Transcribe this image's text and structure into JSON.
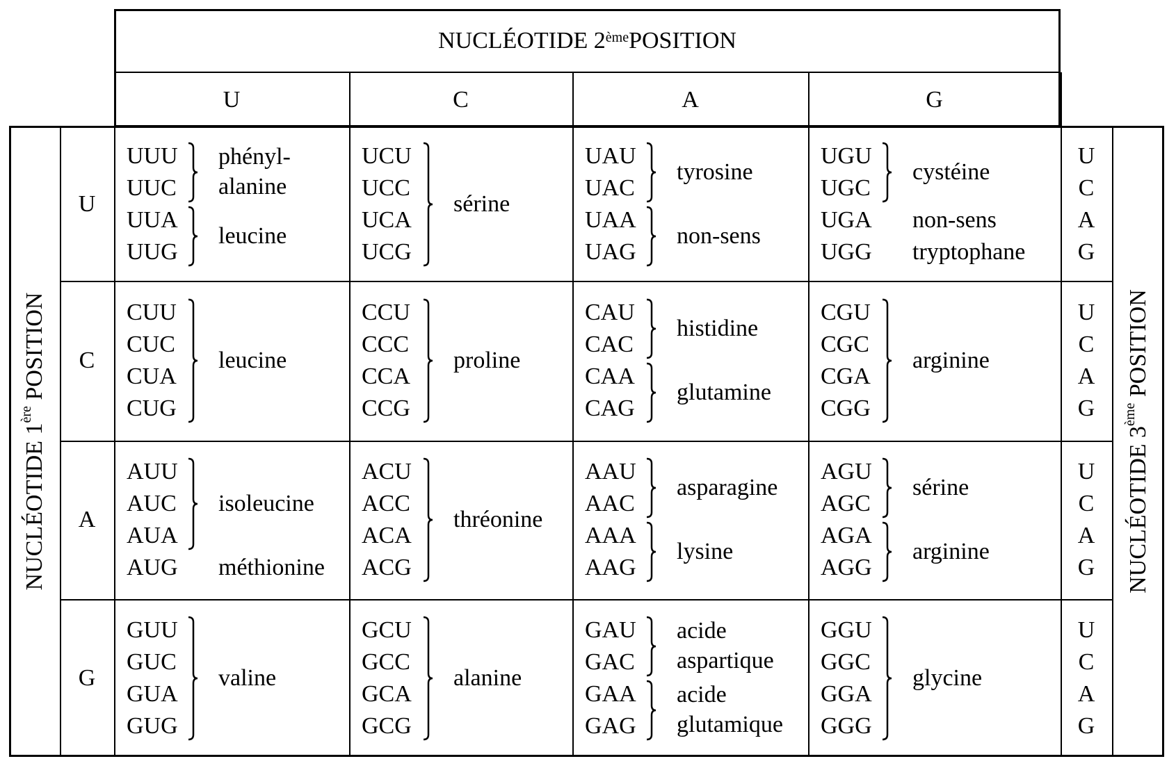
{
  "header": {
    "prefix": "NUCLÉOTIDE 2",
    "sup": "ème",
    "suffix": " POSITION"
  },
  "left_label": {
    "prefix": "NUCLÉOTIDE 1",
    "sup": "ère",
    "suffix": " POSITION"
  },
  "right_label": {
    "prefix": "NUCLÉOTIDE 3",
    "sup": "ème",
    "suffix": " POSITION"
  },
  "second_positions": [
    "U",
    "C",
    "A",
    "G"
  ],
  "first_positions": [
    "U",
    "C",
    "A",
    "G"
  ],
  "third_positions": [
    "U",
    "C",
    "A",
    "G"
  ],
  "rows": [
    {
      "cells": [
        {
          "codons": [
            "UUU",
            "UUC",
            "UUA",
            "UUG"
          ],
          "groups": [
            {
              "from": 0,
              "to": 1,
              "brace": true,
              "label": [
                "phényl-",
                "alanine"
              ]
            },
            {
              "from": 2,
              "to": 3,
              "brace": true,
              "label": [
                "leucine"
              ]
            }
          ]
        },
        {
          "codons": [
            "UCU",
            "UCC",
            "UCA",
            "UCG"
          ],
          "groups": [
            {
              "from": 0,
              "to": 3,
              "brace": true,
              "label": [
                "sérine"
              ]
            }
          ]
        },
        {
          "codons": [
            "UAU",
            "UAC",
            "UAA",
            "UAG"
          ],
          "groups": [
            {
              "from": 0,
              "to": 1,
              "brace": true,
              "label": [
                "tyrosine"
              ]
            },
            {
              "from": 2,
              "to": 3,
              "brace": true,
              "label": [
                "non-sens"
              ]
            }
          ]
        },
        {
          "codons": [
            "UGU",
            "UGC",
            "UGA",
            "UGG"
          ],
          "groups": [
            {
              "from": 0,
              "to": 1,
              "brace": true,
              "label": [
                "cystéine"
              ]
            },
            {
              "from": 2,
              "to": 2,
              "brace": false,
              "label": [
                "non-sens"
              ]
            },
            {
              "from": 3,
              "to": 3,
              "brace": false,
              "label": [
                "tryptophane"
              ]
            }
          ]
        }
      ]
    },
    {
      "cells": [
        {
          "codons": [
            "CUU",
            "CUC",
            "CUA",
            "CUG"
          ],
          "groups": [
            {
              "from": 0,
              "to": 3,
              "brace": true,
              "label": [
                "leucine"
              ]
            }
          ]
        },
        {
          "codons": [
            "CCU",
            "CCC",
            "CCA",
            "CCG"
          ],
          "groups": [
            {
              "from": 0,
              "to": 3,
              "brace": true,
              "label": [
                "proline"
              ]
            }
          ]
        },
        {
          "codons": [
            "CAU",
            "CAC",
            "CAA",
            "CAG"
          ],
          "groups": [
            {
              "from": 0,
              "to": 1,
              "brace": true,
              "label": [
                "histidine"
              ]
            },
            {
              "from": 2,
              "to": 3,
              "brace": true,
              "label": [
                "glutamine"
              ]
            }
          ]
        },
        {
          "codons": [
            "CGU",
            "CGC",
            "CGA",
            "CGG"
          ],
          "groups": [
            {
              "from": 0,
              "to": 3,
              "brace": true,
              "label": [
                "arginine"
              ]
            }
          ]
        }
      ]
    },
    {
      "cells": [
        {
          "codons": [
            "AUU",
            "AUC",
            "AUA",
            "AUG"
          ],
          "groups": [
            {
              "from": 0,
              "to": 2,
              "brace": true,
              "label": [
                "isoleucine"
              ]
            },
            {
              "from": 3,
              "to": 3,
              "brace": false,
              "label": [
                "méthionine"
              ]
            }
          ]
        },
        {
          "codons": [
            "ACU",
            "ACC",
            "ACA",
            "ACG"
          ],
          "groups": [
            {
              "from": 0,
              "to": 3,
              "brace": true,
              "label": [
                "thréonine"
              ]
            }
          ]
        },
        {
          "codons": [
            "AAU",
            "AAC",
            "AAA",
            "AAG"
          ],
          "groups": [
            {
              "from": 0,
              "to": 1,
              "brace": true,
              "label": [
                "asparagine"
              ]
            },
            {
              "from": 2,
              "to": 3,
              "brace": true,
              "label": [
                "lysine"
              ]
            }
          ]
        },
        {
          "codons": [
            "AGU",
            "AGC",
            "AGA",
            "AGG"
          ],
          "groups": [
            {
              "from": 0,
              "to": 1,
              "brace": true,
              "label": [
                "sérine"
              ]
            },
            {
              "from": 2,
              "to": 3,
              "brace": true,
              "label": [
                "arginine"
              ]
            }
          ]
        }
      ]
    },
    {
      "cells": [
        {
          "codons": [
            "GUU",
            "GUC",
            "GUA",
            "GUG"
          ],
          "groups": [
            {
              "from": 0,
              "to": 3,
              "brace": true,
              "label": [
                "valine"
              ]
            }
          ]
        },
        {
          "codons": [
            "GCU",
            "GCC",
            "GCA",
            "GCG"
          ],
          "groups": [
            {
              "from": 0,
              "to": 3,
              "brace": true,
              "label": [
                "alanine"
              ]
            }
          ]
        },
        {
          "codons": [
            "GAU",
            "GAC",
            "GAA",
            "GAG"
          ],
          "groups": [
            {
              "from": 0,
              "to": 1,
              "brace": true,
              "label": [
                "acide",
                "aspartique"
              ]
            },
            {
              "from": 2,
              "to": 3,
              "brace": true,
              "label": [
                "acide",
                "glutamique"
              ]
            }
          ]
        },
        {
          "codons": [
            "GGU",
            "GGC",
            "GGA",
            "GGG"
          ],
          "groups": [
            {
              "from": 0,
              "to": 3,
              "brace": true,
              "label": [
                "glycine"
              ]
            }
          ]
        }
      ]
    }
  ]
}
